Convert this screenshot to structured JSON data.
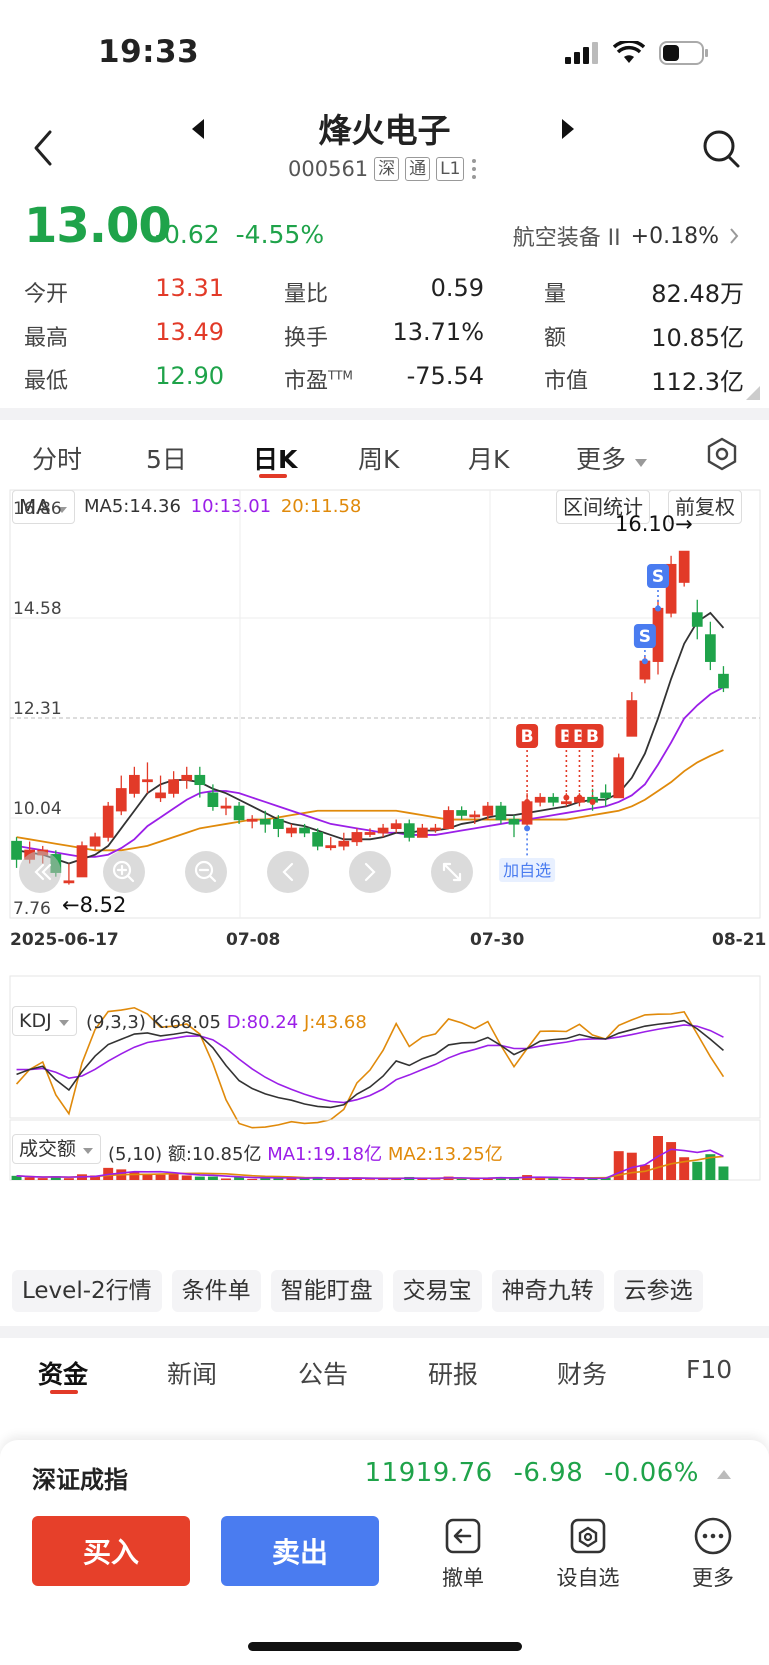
{
  "status": {
    "time": "19:33"
  },
  "header": {
    "name": "烽火电子",
    "code": "000561",
    "tags": [
      "深",
      "通",
      "L1"
    ]
  },
  "price": {
    "last": "13.00",
    "change": "-0.62",
    "pct": "-4.55%",
    "sector_name": "航空装备 II",
    "sector_pct": "+0.18%"
  },
  "quote": [
    [
      {
        "label": "今开",
        "value": "13.31"
      },
      {
        "label": "量比",
        "value": "0.59"
      },
      {
        "label": "量",
        "value": "82.48万"
      }
    ],
    [
      {
        "label": "最高",
        "value": "13.49"
      },
      {
        "label": "换手",
        "value": "13.71%"
      },
      {
        "label": "额",
        "value": "10.85亿"
      }
    ],
    [
      {
        "label": "最低",
        "value": "12.90"
      },
      {
        "label": "市盈TTM",
        "value": "-75.54"
      },
      {
        "label": "市值",
        "value": "112.3亿"
      }
    ]
  ],
  "ktabs": [
    "分时",
    "5日",
    "日K",
    "周K",
    "月K",
    "更多"
  ],
  "chart_header": {
    "indicator": "MA",
    "ma5": "MA5:14.36",
    "ma10": "10:13.01",
    "ma20": "20:11.58",
    "stat_btn": "区间统计",
    "adjust_btn": "前复权"
  },
  "chart_data": {
    "type": "candlestick",
    "y_ticks": [
      "16.86",
      "14.58",
      "12.31",
      "10.04",
      "7.76"
    ],
    "ylim": [
      7.76,
      16.86
    ],
    "x_ticks": [
      "2025-06-17",
      "07-08",
      "07-30",
      "08-21"
    ],
    "annotations": {
      "high": "16.10→",
      "low": "←8.52",
      "add_watch": "加自选",
      "buy": "B",
      "sell": "S"
    },
    "candles": [
      [
        9.5,
        9.1,
        9.6,
        8.9
      ],
      [
        9.1,
        9.3,
        9.5,
        9.0
      ],
      [
        9.2,
        9.3,
        9.4,
        9.0
      ],
      [
        9.2,
        8.8,
        9.3,
        8.7
      ],
      [
        8.6,
        8.6,
        9.0,
        8.52
      ],
      [
        8.7,
        9.4,
        9.5,
        8.7
      ],
      [
        9.4,
        9.6,
        9.7,
        9.3
      ],
      [
        9.6,
        10.3,
        10.4,
        9.5
      ],
      [
        10.2,
        10.7,
        11.0,
        10.1
      ],
      [
        10.6,
        11.0,
        11.2,
        10.5
      ],
      [
        10.9,
        10.9,
        11.3,
        10.6
      ],
      [
        10.5,
        10.6,
        11.0,
        10.4
      ],
      [
        10.6,
        10.9,
        11.1,
        10.5
      ],
      [
        10.9,
        11.0,
        11.2,
        10.7
      ],
      [
        11.0,
        10.8,
        11.2,
        10.5
      ],
      [
        10.6,
        10.3,
        10.8,
        10.2
      ],
      [
        10.3,
        10.3,
        10.5,
        10.1
      ],
      [
        10.3,
        10.0,
        10.4,
        9.9
      ],
      [
        10.0,
        10.0,
        10.1,
        9.8
      ],
      [
        10.0,
        9.9,
        10.2,
        9.7
      ],
      [
        10.0,
        9.8,
        10.1,
        9.6
      ],
      [
        9.7,
        9.8,
        9.9,
        9.6
      ],
      [
        9.8,
        9.7,
        9.9,
        9.6
      ],
      [
        9.7,
        9.4,
        9.8,
        9.3
      ],
      [
        9.4,
        9.4,
        9.6,
        9.3
      ],
      [
        9.4,
        9.5,
        9.7,
        9.3
      ],
      [
        9.5,
        9.7,
        9.8,
        9.4
      ],
      [
        9.7,
        9.7,
        9.8,
        9.6
      ],
      [
        9.7,
        9.8,
        9.9,
        9.6
      ],
      [
        9.8,
        9.9,
        10.0,
        9.7
      ],
      [
        9.9,
        9.6,
        10.0,
        9.5
      ],
      [
        9.6,
        9.8,
        9.9,
        9.6
      ],
      [
        9.8,
        9.8,
        9.9,
        9.7
      ],
      [
        9.8,
        10.2,
        10.3,
        9.8
      ],
      [
        10.2,
        10.1,
        10.3,
        10.0
      ],
      [
        10.1,
        10.1,
        10.2,
        9.9
      ],
      [
        10.1,
        10.3,
        10.4,
        10.0
      ],
      [
        10.3,
        10.0,
        10.4,
        9.9
      ],
      [
        10.0,
        9.9,
        10.1,
        9.6
      ],
      [
        9.9,
        10.4,
        10.6,
        9.8
      ],
      [
        10.4,
        10.5,
        10.6,
        10.3
      ],
      [
        10.5,
        10.4,
        10.6,
        10.3
      ],
      [
        10.4,
        10.4,
        10.6,
        10.3
      ],
      [
        10.4,
        10.5,
        10.6,
        10.3
      ],
      [
        10.5,
        10.4,
        10.7,
        10.2
      ],
      [
        10.6,
        10.5,
        10.8,
        10.3
      ],
      [
        10.5,
        11.4,
        11.5,
        10.5
      ],
      [
        11.9,
        12.7,
        12.9,
        11.9
      ],
      [
        13.2,
        13.6,
        13.7,
        13.1
      ],
      [
        13.6,
        14.8,
        15.0,
        13.3
      ],
      [
        14.7,
        15.8,
        16.0,
        14.6
      ],
      [
        15.4,
        16.1,
        16.1,
        15.3
      ],
      [
        14.7,
        14.4,
        15.0,
        14.1
      ],
      [
        14.2,
        13.6,
        14.5,
        13.4
      ],
      [
        13.3,
        13.0,
        13.49,
        12.9
      ]
    ],
    "ma5": [
      9.3,
      9.25,
      9.2,
      9.1,
      9.0,
      9.1,
      9.2,
      9.4,
      9.8,
      10.2,
      10.6,
      10.8,
      10.9,
      10.9,
      10.85,
      10.7,
      10.6,
      10.45,
      10.3,
      10.15,
      10.0,
      9.9,
      9.85,
      9.75,
      9.65,
      9.55,
      9.55,
      9.55,
      9.6,
      9.7,
      9.7,
      9.75,
      9.75,
      9.8,
      9.9,
      9.95,
      10.05,
      10.1,
      10.1,
      10.15,
      10.2,
      10.25,
      10.3,
      10.4,
      10.45,
      10.45,
      10.6,
      10.95,
      11.5,
      12.3,
      13.2,
      14.0,
      14.5,
      14.7,
      14.36
    ],
    "ma10": [
      9.4,
      9.35,
      9.3,
      9.25,
      9.2,
      9.15,
      9.15,
      9.2,
      9.35,
      9.55,
      9.85,
      10.05,
      10.25,
      10.45,
      10.6,
      10.65,
      10.65,
      10.6,
      10.5,
      10.4,
      10.3,
      10.2,
      10.1,
      10.0,
      9.9,
      9.85,
      9.8,
      9.75,
      9.7,
      9.7,
      9.65,
      9.65,
      9.65,
      9.7,
      9.75,
      9.8,
      9.85,
      9.9,
      9.95,
      10.0,
      10.05,
      10.1,
      10.15,
      10.2,
      10.25,
      10.3,
      10.4,
      10.55,
      10.8,
      11.25,
      11.75,
      12.3,
      12.6,
      12.85,
      13.01
    ],
    "ma20": [
      9.6,
      9.55,
      9.5,
      9.45,
      9.4,
      9.35,
      9.3,
      9.3,
      9.3,
      9.35,
      9.4,
      9.5,
      9.6,
      9.7,
      9.8,
      9.85,
      9.9,
      9.95,
      10.0,
      10.0,
      10.05,
      10.1,
      10.15,
      10.2,
      10.2,
      10.2,
      10.2,
      10.2,
      10.2,
      10.2,
      10.15,
      10.1,
      10.05,
      10.0,
      10.0,
      10.0,
      10.0,
      10.0,
      10.0,
      10.0,
      10.0,
      10.0,
      10.0,
      10.05,
      10.1,
      10.15,
      10.2,
      10.3,
      10.45,
      10.65,
      10.85,
      11.1,
      11.3,
      11.45,
      11.58
    ]
  },
  "kdj": {
    "label": "KDJ",
    "params": "(9,3,3)",
    "k": "K:68.05",
    "d": "D:80.24",
    "j": "J:43.68"
  },
  "volume": {
    "label": "成交额",
    "params": "(5,10)",
    "amount": "额:10.85亿",
    "ma1": "MA1:19.18亿",
    "ma2": "MA2:13.25亿"
  },
  "services": [
    "Level-2行情",
    "条件单",
    "智能盯盘",
    "交易宝",
    "神奇九转",
    "云参选"
  ],
  "news_tabs": [
    "资金",
    "新闻",
    "公告",
    "研报",
    "财务",
    "F10"
  ],
  "bottom": {
    "index_name": "深证成指",
    "index_value": "11919.76",
    "index_change": "-6.98",
    "index_pct": "-0.06%",
    "buy": "买入",
    "sell": "卖出",
    "cancel": "撤单",
    "watch": "设自选",
    "more": "更多"
  },
  "colors": {
    "up": "#e23a28",
    "down": "#1fa34a",
    "ma5": "#333333",
    "ma10": "#9b1fe8",
    "ma20": "#e08a0b"
  }
}
